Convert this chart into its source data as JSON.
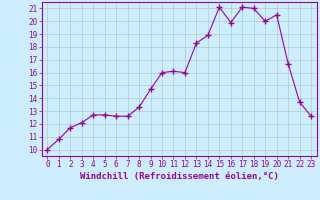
{
  "x": [
    0,
    1,
    2,
    3,
    4,
    5,
    6,
    7,
    8,
    9,
    10,
    11,
    12,
    13,
    14,
    15,
    16,
    17,
    18,
    19,
    20,
    21,
    22,
    23
  ],
  "y": [
    10.0,
    10.8,
    11.7,
    12.1,
    12.7,
    12.7,
    12.6,
    12.6,
    13.3,
    14.7,
    16.0,
    16.1,
    16.0,
    18.3,
    18.9,
    21.1,
    19.9,
    21.1,
    21.0,
    20.0,
    20.5,
    16.7,
    13.7,
    12.6
  ],
  "xlim": [
    -0.5,
    23.5
  ],
  "ylim": [
    9.5,
    21.5
  ],
  "yticks": [
    10,
    11,
    12,
    13,
    14,
    15,
    16,
    17,
    18,
    19,
    20,
    21
  ],
  "xticks": [
    0,
    1,
    2,
    3,
    4,
    5,
    6,
    7,
    8,
    9,
    10,
    11,
    12,
    13,
    14,
    15,
    16,
    17,
    18,
    19,
    20,
    21,
    22,
    23
  ],
  "xlabel": "Windchill (Refroidissement éolien,°C)",
  "line_color": "#990099",
  "marker": "+",
  "marker_size": 4,
  "line_width": 0.8,
  "bg_color": "#cceeff",
  "grid_color": "#aacccc",
  "tick_label_fontsize": 5.5,
  "xlabel_fontsize": 6.5,
  "title": ""
}
